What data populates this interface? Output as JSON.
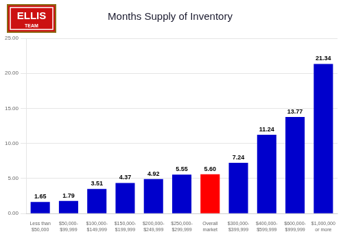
{
  "chart_data": {
    "type": "bar",
    "title": "Months Supply of Inventory",
    "annotations": [
      "ELLIS",
      "TEAM"
    ],
    "categories": [
      "Less than\n$50,000",
      "$50,000-\n$99,999",
      "$100,000-\n$149,999",
      "$150,000-\n$199,999",
      "$200,000-\n$249,999",
      "$250,000-\n$299,999",
      "Overall\nmarket",
      "$300,000-\n$399,999",
      "$400,000-\n$599,999",
      "$600,000-\n$999,999",
      "$1,000,000\nor more"
    ],
    "values": [
      1.65,
      1.79,
      3.51,
      4.37,
      4.92,
      5.55,
      5.6,
      7.24,
      11.24,
      13.77,
      21.34
    ],
    "value_labels": [
      "1.65",
      "1.79",
      "3.51",
      "4.37",
      "4.92",
      "5.55",
      "5.60",
      "7.24",
      "11.24",
      "13.77",
      "21.34"
    ],
    "data_labels": true,
    "colors": [
      "#0000cc",
      "#0000cc",
      "#0000cc",
      "#0000cc",
      "#0000cc",
      "#0000cc",
      "#ff0000",
      "#0000cc",
      "#0000cc",
      "#0000cc",
      "#0000cc"
    ],
    "ylim": [
      0,
      25
    ],
    "yticks": [
      {
        "value": 0,
        "label": "0.00"
      },
      {
        "value": 5,
        "label": "5.00"
      },
      {
        "value": 10,
        "label": "10.00"
      },
      {
        "value": 15,
        "label": "15.00"
      },
      {
        "value": 20,
        "label": "20.00"
      },
      {
        "value": 25,
        "label": "25.00"
      }
    ],
    "grid": true
  }
}
